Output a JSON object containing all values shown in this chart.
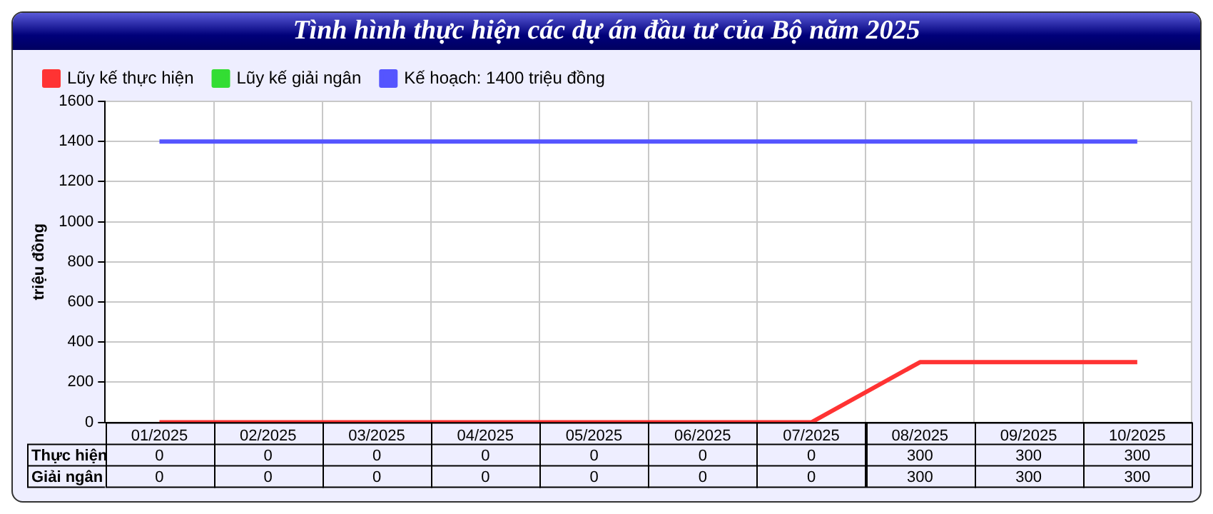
{
  "chart_data": {
    "type": "line",
    "title": "Tình hình thực hiện các dự án đầu tư của Bộ năm 2025",
    "ylabel": "triệu đồng",
    "categories": [
      "01/2025",
      "02/2025",
      "03/2025",
      "04/2025",
      "05/2025",
      "06/2025",
      "07/2025",
      "08/2025",
      "09/2025",
      "10/2025"
    ],
    "series": [
      {
        "name": "Lũy kế thực hiện",
        "color": "#ff3333",
        "values": [
          0,
          0,
          0,
          0,
          0,
          0,
          0,
          300,
          300,
          300
        ],
        "value_labels": [
          "0",
          "0",
          "0",
          "0",
          "0",
          "0",
          "0",
          "300",
          "300",
          "300"
        ]
      },
      {
        "name": "Lũy kế giải ngân",
        "color": "#33dd33",
        "values": [
          null,
          null,
          null,
          null,
          null,
          null,
          null,
          null,
          null,
          null
        ],
        "value_labels": [
          "0",
          "0",
          "0",
          "0",
          "0",
          "0",
          "0",
          "300",
          "300",
          "300"
        ]
      },
      {
        "name": "Kế hoạch: 1400 triệu đồng",
        "color": "#5555ff",
        "values": [
          1400,
          1400,
          1400,
          1400,
          1400,
          1400,
          1400,
          1400,
          1400,
          1400
        ]
      }
    ],
    "ylim": [
      0,
      1600
    ],
    "yticks": [
      0,
      200,
      400,
      600,
      800,
      1000,
      1200,
      1400,
      1600
    ],
    "grid": true,
    "legend": "top left",
    "marker": "none",
    "line_style": "solid",
    "annotations": [
      "Thực hiện",
      "Giải ngân"
    ]
  }
}
